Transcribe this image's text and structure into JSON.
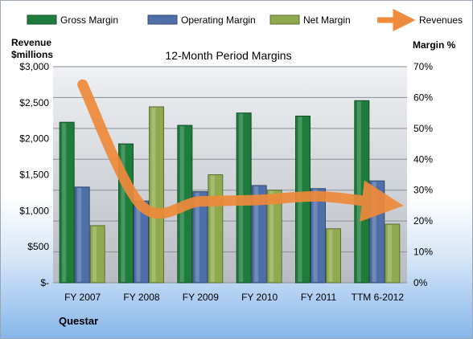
{
  "chart_data": {
    "type": "bar",
    "title": "12-Month Period Margins",
    "company": "Questar",
    "categories": [
      "FY 2007",
      "FY 2008",
      "FY 2009",
      "FY 2010",
      "FY 2011",
      "TTM 6-2012"
    ],
    "series": [
      {
        "name": "Gross Margin",
        "axis": "right",
        "color": "#1e7d3c",
        "values": [
          52,
          45,
          51,
          55,
          54,
          59
        ]
      },
      {
        "name": "Operating Margin",
        "axis": "right",
        "color": "#4f6fa9",
        "values": [
          31,
          26.5,
          29.5,
          31.5,
          30.5,
          33
        ]
      },
      {
        "name": "Net Margin",
        "axis": "right",
        "color": "#8faa4e",
        "values": [
          18.5,
          57,
          35,
          30,
          17.5,
          19
        ]
      },
      {
        "name": "Revenues",
        "type": "line",
        "axis": "left",
        "color": "#ee8a3a",
        "values": [
          2750,
          1070,
          1130,
          1150,
          1200,
          1110
        ]
      }
    ],
    "left_axis": {
      "title_lines": [
        "Revenue",
        "$millions"
      ],
      "min": 0,
      "max": 3000,
      "step": 500,
      "tick_labels": [
        "$-",
        "$500",
        "$1,000",
        "$1,500",
        "$2,000",
        "$2,500",
        "$3,000"
      ]
    },
    "right_axis": {
      "title": "Margin %",
      "min": 0,
      "max": 70,
      "step": 10,
      "tick_labels": [
        "0%",
        "10%",
        "20%",
        "30%",
        "40%",
        "50%",
        "60%",
        "70%"
      ]
    },
    "legend_position": "top",
    "grid": true
  }
}
